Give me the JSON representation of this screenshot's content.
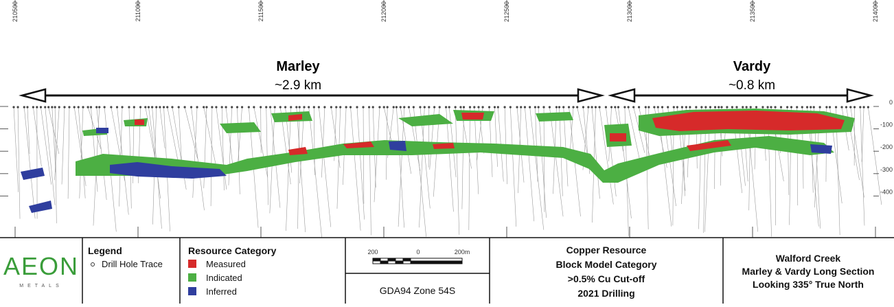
{
  "eastings": [
    "210500",
    "211000",
    "211500",
    "212000",
    "212500",
    "213000",
    "213500",
    "214000"
  ],
  "depths": [
    "0",
    "-100",
    "-200",
    "-300",
    "-400"
  ],
  "deposits": [
    {
      "name": "Marley",
      "length": "~2.9 km"
    },
    {
      "name": "Vardy",
      "length": "~0.8 km"
    }
  ],
  "logo": {
    "name": "AEON",
    "sub": "METALS"
  },
  "legend": {
    "title": "Legend",
    "item": "Drill Hole Trace"
  },
  "resource_category": {
    "title": "Resource Category",
    "items": [
      "Measured",
      "Indicated",
      "Inferred"
    ]
  },
  "scale": {
    "labels": [
      "200",
      "0",
      "200m"
    ],
    "projection": "GDA94 Zone 54S"
  },
  "resource_block": [
    "Copper Resource",
    "Block Model Category",
    ">0.5% Cu Cut-off",
    "2021 Drilling"
  ],
  "section_block": [
    "Walford Creek",
    "Marley & Vardy Long Section",
    "Looking 335° True North"
  ]
}
